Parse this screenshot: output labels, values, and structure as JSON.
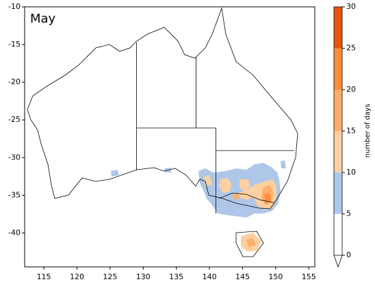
{
  "chart_data": {
    "type": "map",
    "title": "May",
    "xlim": [
      112.1,
      155.9
    ],
    "xticks": [
      115,
      120,
      125,
      130,
      135,
      140,
      145,
      150,
      155
    ],
    "ylim": [
      -44.5,
      -10
    ],
    "yticks": [
      -10,
      -15,
      -20,
      -25,
      -30,
      -35,
      -40
    ],
    "colorbar": {
      "label": "number of days",
      "bounds": [
        0,
        5,
        10,
        15,
        20,
        25,
        30
      ],
      "colors": [
        "#ffffff",
        "#aec7e8",
        "#fdd0a2",
        "#fdae6b",
        "#fd8d3c",
        "#e6550d"
      ],
      "ticks": [
        0,
        5,
        10,
        15,
        20,
        25,
        30
      ]
    }
  }
}
